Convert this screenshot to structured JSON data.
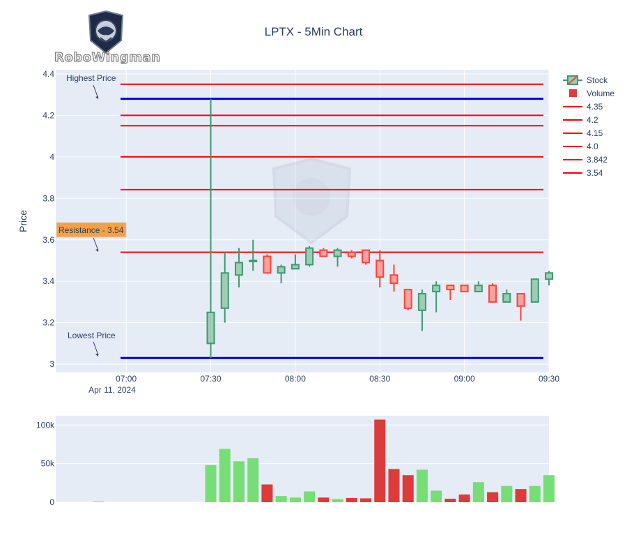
{
  "header": {
    "logo_text": "RoboWingman",
    "title": "LPTX - 5Min Chart"
  },
  "annotations": {
    "highest": "Highest Price",
    "lowest": "Lowest Price",
    "resistance": "Resistance - 3.54"
  },
  "colors": {
    "increasing": "#3d9970",
    "increasing_fill": "#9ecdb4",
    "decreasing": "#ff4136",
    "decreasing_fill": "#f5a3a0",
    "level_line": "#ff0000",
    "extreme_line": "#0000dd",
    "vol_up": "#77dd77",
    "vol_down": "#dd3a3a",
    "plot_bg": "#e5ecf6",
    "resistance_box": "#f7a043"
  },
  "chart_data": {
    "type": "candlestick",
    "title": "LPTX - 5Min Chart",
    "ylabel": "Price",
    "date_label": "Apr 11, 2024",
    "x_ticks": [
      "07:00",
      "07:30",
      "08:00",
      "08:30",
      "09:00",
      "09:30"
    ],
    "y_ticks": [
      "3",
      "3.2",
      "3.4",
      "3.6",
      "3.8",
      "4",
      "4.2",
      "4.4"
    ],
    "ylim": [
      2.96,
      4.42
    ],
    "xlim_minutes": [
      395,
      570
    ],
    "legend": [
      "Stock",
      "Volume",
      "4.35",
      "4.2",
      "4.15",
      "4.0",
      "3.842",
      "3.54"
    ],
    "levels": [
      4.35,
      4.2,
      4.15,
      4.0,
      3.842,
      3.54
    ],
    "highest": 4.28,
    "lowest": 3.03,
    "candles": [
      {
        "t": "07:30",
        "o": 3.1,
        "h": 4.28,
        "l": 3.03,
        "c": 3.25
      },
      {
        "t": "07:35",
        "o": 3.27,
        "h": 3.54,
        "l": 3.2,
        "c": 3.44
      },
      {
        "t": "07:40",
        "o": 3.43,
        "h": 3.56,
        "l": 3.37,
        "c": 3.49
      },
      {
        "t": "07:45",
        "o": 3.5,
        "h": 3.6,
        "l": 3.45,
        "c": 3.5
      },
      {
        "t": "07:50",
        "o": 3.52,
        "h": 3.53,
        "l": 3.44,
        "c": 3.44
      },
      {
        "t": "07:55",
        "o": 3.44,
        "h": 3.48,
        "l": 3.39,
        "c": 3.47
      },
      {
        "t": "08:00",
        "o": 3.46,
        "h": 3.53,
        "l": 3.46,
        "c": 3.48
      },
      {
        "t": "08:05",
        "o": 3.48,
        "h": 3.57,
        "l": 3.47,
        "c": 3.56
      },
      {
        "t": "08:10",
        "o": 3.55,
        "h": 3.56,
        "l": 3.52,
        "c": 3.52
      },
      {
        "t": "08:15",
        "o": 3.52,
        "h": 3.56,
        "l": 3.47,
        "c": 3.55
      },
      {
        "t": "08:20",
        "o": 3.54,
        "h": 3.55,
        "l": 3.51,
        "c": 3.52
      },
      {
        "t": "08:25",
        "o": 3.55,
        "h": 3.55,
        "l": 3.48,
        "c": 3.49
      },
      {
        "t": "08:30",
        "o": 3.5,
        "h": 3.55,
        "l": 3.37,
        "c": 3.42
      },
      {
        "t": "08:35",
        "o": 3.43,
        "h": 3.48,
        "l": 3.35,
        "c": 3.39
      },
      {
        "t": "08:40",
        "o": 3.36,
        "h": 3.36,
        "l": 3.26,
        "c": 3.27
      },
      {
        "t": "08:45",
        "o": 3.26,
        "h": 3.36,
        "l": 3.16,
        "c": 3.34
      },
      {
        "t": "08:50",
        "o": 3.35,
        "h": 3.4,
        "l": 3.25,
        "c": 3.38
      },
      {
        "t": "08:55",
        "o": 3.38,
        "h": 3.38,
        "l": 3.31,
        "c": 3.36
      },
      {
        "t": "09:00",
        "o": 3.38,
        "h": 3.38,
        "l": 3.35,
        "c": 3.35
      },
      {
        "t": "09:05",
        "o": 3.35,
        "h": 3.4,
        "l": 3.35,
        "c": 3.38
      },
      {
        "t": "09:10",
        "o": 3.38,
        "h": 3.39,
        "l": 3.3,
        "c": 3.3
      },
      {
        "t": "09:15",
        "o": 3.3,
        "h": 3.36,
        "l": 3.3,
        "c": 3.34
      },
      {
        "t": "09:20",
        "o": 3.34,
        "h": 3.34,
        "l": 3.21,
        "c": 3.28
      },
      {
        "t": "09:25",
        "o": 3.3,
        "h": 3.41,
        "l": 3.3,
        "c": 3.41
      },
      {
        "t": "09:30",
        "o": 3.41,
        "h": 3.45,
        "l": 3.38,
        "c": 3.44
      }
    ],
    "volume": {
      "ylim": [
        0,
        112000
      ],
      "y_ticks": [
        "0",
        "50k",
        "100k"
      ],
      "bars": [
        {
          "t": "07:30",
          "v": 48000,
          "up": true
        },
        {
          "t": "07:35",
          "v": 69000,
          "up": true
        },
        {
          "t": "07:40",
          "v": 53000,
          "up": true
        },
        {
          "t": "07:45",
          "v": 57000,
          "up": true
        },
        {
          "t": "07:50",
          "v": 23000,
          "up": false
        },
        {
          "t": "07:55",
          "v": 8000,
          "up": true
        },
        {
          "t": "08:00",
          "v": 6000,
          "up": true
        },
        {
          "t": "08:05",
          "v": 14000,
          "up": true
        },
        {
          "t": "08:10",
          "v": 6000,
          "up": false
        },
        {
          "t": "08:15",
          "v": 4000,
          "up": true
        },
        {
          "t": "08:20",
          "v": 5500,
          "up": false
        },
        {
          "t": "08:25",
          "v": 5000,
          "up": false
        },
        {
          "t": "08:30",
          "v": 107000,
          "up": false
        },
        {
          "t": "08:35",
          "v": 43000,
          "up": false
        },
        {
          "t": "08:40",
          "v": 35000,
          "up": false
        },
        {
          "t": "08:45",
          "v": 42000,
          "up": true
        },
        {
          "t": "08:50",
          "v": 15000,
          "up": true
        },
        {
          "t": "08:55",
          "v": 4500,
          "up": false
        },
        {
          "t": "09:00",
          "v": 10000,
          "up": false
        },
        {
          "t": "09:05",
          "v": 26000,
          "up": true
        },
        {
          "t": "09:10",
          "v": 13000,
          "up": false
        },
        {
          "t": "09:15",
          "v": 21000,
          "up": true
        },
        {
          "t": "09:20",
          "v": 17000,
          "up": false
        },
        {
          "t": "09:25",
          "v": 21000,
          "up": true
        },
        {
          "t": "09:30",
          "v": 35000,
          "up": true
        }
      ]
    }
  }
}
